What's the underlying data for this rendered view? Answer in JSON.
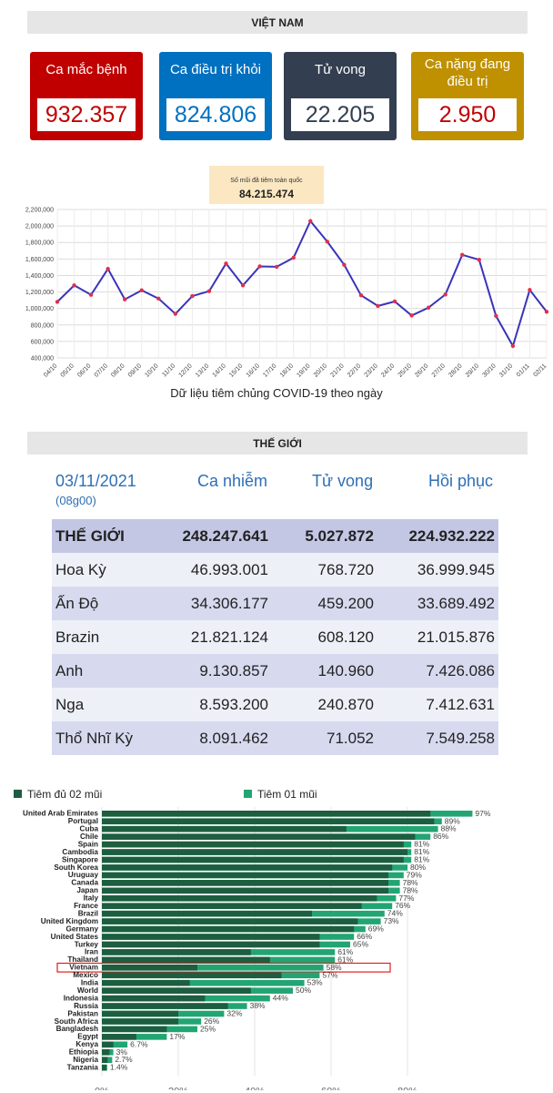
{
  "vn": {
    "title": "VIỆT NAM",
    "cards": [
      {
        "label": "Ca mắc bệnh",
        "value": "932.357",
        "color": "#c00000"
      },
      {
        "label": "Ca điều trị khỏi",
        "value": "824.806",
        "color": "#0070c0"
      },
      {
        "label": "Tử vong",
        "value": "22.205",
        "color": "#333f50"
      },
      {
        "label": "Ca nặng đang điều trị",
        "value": "2.950",
        "color": "#bf9000"
      }
    ]
  },
  "vaccine_callout": {
    "label": "Số mũi đã tiêm toàn quốc",
    "value": "84.215.474"
  },
  "world": {
    "title": "THẾ GIỚI",
    "date": "03/11/2021",
    "time": "(08g00)",
    "col_cases": "Ca nhiễm",
    "col_deaths": "Tử vong",
    "col_recovered": "Hồi phục",
    "rows": [
      {
        "name": "THẾ GIỚI",
        "cases": "248.247.641",
        "deaths": "5.027.872",
        "recovered": "224.932.222"
      },
      {
        "name": "Hoa Kỳ",
        "cases": "46.993.001",
        "deaths": "768.720",
        "recovered": "36.999.945"
      },
      {
        "name": "Ấn Độ",
        "cases": "34.306.177",
        "deaths": "459.200",
        "recovered": "33.689.492"
      },
      {
        "name": "Brazin",
        "cases": "21.821.124",
        "deaths": "608.120",
        "recovered": "21.015.876"
      },
      {
        "name": "Anh",
        "cases": "9.130.857",
        "deaths": "140.960",
        "recovered": "7.426.086"
      },
      {
        "name": "Nga",
        "cases": "8.593.200",
        "deaths": "240.870",
        "recovered": "7.412.631"
      },
      {
        "name": "Thổ Nhĩ Kỳ",
        "cases": "8.091.462",
        "deaths": "71.052",
        "recovered": "7.549.258"
      }
    ]
  },
  "chart_data": [
    {
      "type": "line",
      "title": "",
      "xlabel": "Dữ liệu tiêm chủng COVID-19 theo ngày",
      "ylabel": "",
      "ylim": [
        400000,
        2200000
      ],
      "yticks": [
        "400,000",
        "600,000",
        "800,000",
        "1,000,000",
        "1,200,000",
        "1,400,000",
        "1,600,000",
        "1,800,000",
        "2,000,000",
        "2,200,000"
      ],
      "grid": true,
      "line_color": "#3a34b8",
      "marker_color": "#e0304a",
      "x": [
        "04/10",
        "05/10",
        "06/10",
        "07/10",
        "08/10",
        "09/10",
        "10/10",
        "11/10",
        "12/10",
        "13/10",
        "14/10",
        "15/10",
        "16/10",
        "17/10",
        "18/10",
        "19/10",
        "20/10",
        "21/10",
        "22/10",
        "23/10",
        "24/10",
        "25/10",
        "26/10",
        "27/10",
        "28/10",
        "29/10",
        "30/10",
        "31/10",
        "01/11",
        "02/11"
      ],
      "values": [
        1080000,
        1280000,
        1165000,
        1480000,
        1110000,
        1220000,
        1120000,
        935000,
        1150000,
        1210000,
        1545000,
        1280000,
        1510000,
        1505000,
        1615000,
        2060000,
        1810000,
        1530000,
        1160000,
        1030000,
        1085000,
        915000,
        1010000,
        1170000,
        1650000,
        1590000,
        910000,
        545000,
        1225000,
        960000
      ]
    },
    {
      "type": "bar",
      "orientation": "horizontal",
      "stacked": true,
      "xlim": [
        0,
        100
      ],
      "xticks": [
        "0%",
        "20%",
        "40%",
        "60%",
        "80%"
      ],
      "legend_position": "top",
      "series": [
        {
          "name": "Tiêm đủ 02 mũi",
          "color": "#1c5e3f"
        },
        {
          "name": "Tiêm 01 mũi",
          "color": "#22a573"
        }
      ],
      "highlight": "Vietnam",
      "highlight_color": "#e02020",
      "categories": [
        "United Arab Emirates",
        "Portugal",
        "Cuba",
        "Chile",
        "Spain",
        "Cambodia",
        "Singapore",
        "South Korea",
        "Uruguay",
        "Canada",
        "Japan",
        "Italy",
        "France",
        "Brazil",
        "United Kingdom",
        "Germany",
        "United States",
        "Turkey",
        "Iran",
        "Thailand",
        "Vietnam",
        "Mexico",
        "India",
        "World",
        "Indonesia",
        "Russia",
        "Pakistan",
        "South Africa",
        "Bangladesh",
        "Egypt",
        "Kenya",
        "Ethiopia",
        "Nigeria",
        "Tanzania"
      ],
      "full": [
        86,
        87,
        64,
        82,
        79,
        80,
        79,
        76,
        75,
        75,
        75,
        72,
        68,
        55,
        67,
        66,
        57,
        57,
        39,
        44,
        25,
        47,
        23,
        39,
        27,
        33,
        20,
        20,
        17,
        9,
        3,
        2,
        1.5,
        1.2
      ],
      "totals": [
        97,
        89,
        88,
        86,
        81,
        81,
        81,
        80,
        79,
        78,
        78,
        77,
        76,
        74,
        73,
        69,
        66,
        65,
        61,
        61,
        58,
        57,
        53,
        50,
        44,
        38,
        32,
        26,
        25,
        17,
        6.7,
        3,
        2.7,
        1.4
      ],
      "labels": [
        "97%",
        "89%",
        "88%",
        "86%",
        "81%",
        "81%",
        "81%",
        "80%",
        "79%",
        "78%",
        "78%",
        "77%",
        "76%",
        "74%",
        "73%",
        "69%",
        "66%",
        "65%",
        "61%",
        "61%",
        "58%",
        "57%",
        "53%",
        "50%",
        "44%",
        "38%",
        "32%",
        "26%",
        "25%",
        "17%",
        "6.7%",
        "3%",
        "2.7%",
        "1.4%"
      ]
    }
  ]
}
